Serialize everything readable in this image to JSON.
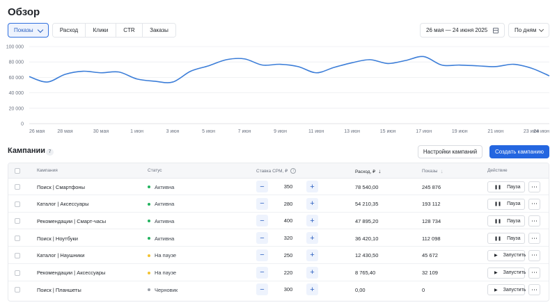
{
  "page": {
    "title": "Обзор"
  },
  "toolbar": {
    "metric_select": "Показы",
    "metric_tabs": [
      "Расход",
      "Клики",
      "CTR",
      "Заказы"
    ],
    "date_range": "26 мая — 24 июня 2025",
    "grouping": "По дням"
  },
  "chart_data": {
    "type": "line",
    "x": [
      "26 мая",
      "27 мая",
      "28 мая",
      "29 мая",
      "30 мая",
      "31 мая",
      "1 июн",
      "2 июн",
      "3 июн",
      "4 июн",
      "5 июн",
      "6 июн",
      "7 июн",
      "8 июн",
      "9 июн",
      "10 июн",
      "11 июн",
      "12 июн",
      "13 июн",
      "14 июн",
      "15 июн",
      "16 июн",
      "17 июн",
      "18 июн",
      "19 июн",
      "20 июн",
      "21 июн",
      "22 июн",
      "23 июн",
      "24 июн"
    ],
    "x_ticks": [
      "26 мая",
      "28 мая",
      "30 мая",
      "1 июн",
      "3 июн",
      "5 июн",
      "7 июн",
      "9 июн",
      "11 июн",
      "13 июн",
      "15 июн",
      "17 июн",
      "19 июн",
      "21 июн",
      "23 июн",
      "24 июн"
    ],
    "series": [
      {
        "values": [
          61000,
          54000,
          64000,
          68000,
          66000,
          67000,
          58000,
          55000,
          54000,
          68000,
          75000,
          83000,
          84000,
          76000,
          77000,
          74000,
          66000,
          73000,
          79000,
          83000,
          78000,
          82000,
          87000,
          76000,
          76000,
          75000,
          74000,
          77000,
          72000,
          62000
        ],
        "color": "#3b7dd8"
      }
    ],
    "ylim": [
      0,
      100000
    ],
    "y_ticks": [
      "100 000",
      "80 000",
      "60 000",
      "40 000",
      "20 000",
      "0"
    ],
    "grid": true
  },
  "campaigns": {
    "title": "Кампании",
    "count": "7",
    "settings_label": "Настройки кампаний",
    "create_label": "Создать кампанию",
    "headers": {
      "name": "Кампания",
      "status": "Статус",
      "bid": "Ставка CPM, ₽",
      "spend": "Расход, ₽",
      "impressions": "Показы",
      "action": "Действие"
    },
    "rows": [
      {
        "name": "Поиск | Смартфоны",
        "status": "Активна",
        "status_color": "#22b35e",
        "bid": "350",
        "spend": "78 540,00",
        "impressions": "245 876",
        "action": "Пауза",
        "action_icon": "pause-icon"
      },
      {
        "name": "Каталог | Аксессуары",
        "status": "Активна",
        "status_color": "#22b35e",
        "bid": "280",
        "spend": "54 210,35",
        "impressions": "193 112",
        "action": "Пауза",
        "action_icon": "pause-icon"
      },
      {
        "name": "Рекомендации | Смарт-часы",
        "status": "Активна",
        "status_color": "#22b35e",
        "bid": "400",
        "spend": "47 895,20",
        "impressions": "128 734",
        "action": "Пауза",
        "action_icon": "pause-icon"
      },
      {
        "name": "Поиск | Ноутбуки",
        "status": "Активна",
        "status_color": "#22b35e",
        "bid": "320",
        "spend": "36 420,10",
        "impressions": "112 098",
        "action": "Пауза",
        "action_icon": "pause-icon"
      },
      {
        "name": "Каталог | Наушники",
        "status": "На паузе",
        "status_color": "#f2c230",
        "bid": "250",
        "spend": "12 430,50",
        "impressions": "45 672",
        "action": "Запустить",
        "action_icon": "play-icon"
      },
      {
        "name": "Рекомендации | Аксессуары",
        "status": "На паузе",
        "status_color": "#f2c230",
        "bid": "220",
        "spend": "8 765,40",
        "impressions": "32 109",
        "action": "Запустить",
        "action_icon": "play-icon"
      },
      {
        "name": "Поиск | Планшеты",
        "status": "Черновик",
        "status_color": "#9aa0a8",
        "bid": "300",
        "spend": "0,00",
        "impressions": "0",
        "action": "Запустить",
        "action_icon": "play-icon"
      }
    ]
  }
}
